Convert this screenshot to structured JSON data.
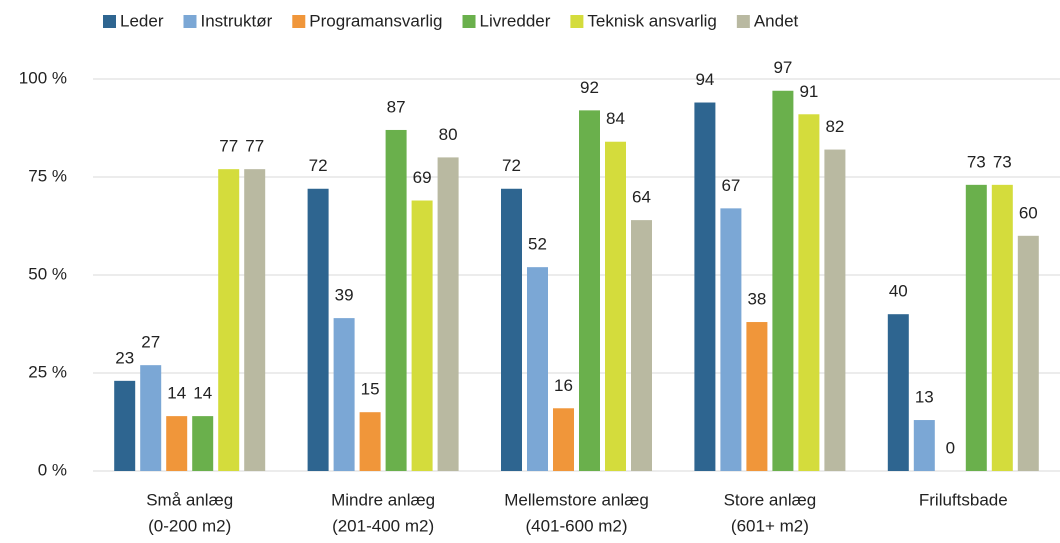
{
  "chart_data": {
    "type": "bar",
    "categories": [
      [
        "Små anlæg",
        "(0-200 m2)"
      ],
      [
        "Mindre anlæg",
        "(201-400 m2)"
      ],
      [
        "Mellemstore anlæg",
        "(401-600 m2)"
      ],
      [
        "Store anlæg",
        "(601+ m2)"
      ],
      [
        "Friluftsbade"
      ]
    ],
    "series": [
      {
        "name": "Leder",
        "color": "#2e6590",
        "values": [
          23,
          72,
          72,
          94,
          40
        ]
      },
      {
        "name": "Instruktør",
        "color": "#7ba7d5",
        "values": [
          27,
          39,
          52,
          67,
          13
        ]
      },
      {
        "name": "Programansvarlig",
        "color": "#f0963a",
        "values": [
          14,
          15,
          16,
          38,
          0
        ]
      },
      {
        "name": "Livredder",
        "color": "#6ab04c",
        "values": [
          14,
          87,
          92,
          97,
          73
        ]
      },
      {
        "name": "Teknisk ansvarlig",
        "color": "#d4dc3c",
        "values": [
          77,
          69,
          84,
          91,
          73
        ]
      },
      {
        "name": "Andet",
        "color": "#b9b9a1",
        "values": [
          77,
          80,
          64,
          82,
          60
        ]
      }
    ],
    "ylim": [
      0,
      100
    ],
    "yticks": [
      {
        "value": 0,
        "label": "0 %"
      },
      {
        "value": 25,
        "label": "25 %"
      },
      {
        "value": 50,
        "label": "50 %"
      },
      {
        "value": 75,
        "label": "75 %"
      },
      {
        "value": 100,
        "label": "100 %"
      }
    ],
    "grid": true,
    "legend": "top"
  }
}
